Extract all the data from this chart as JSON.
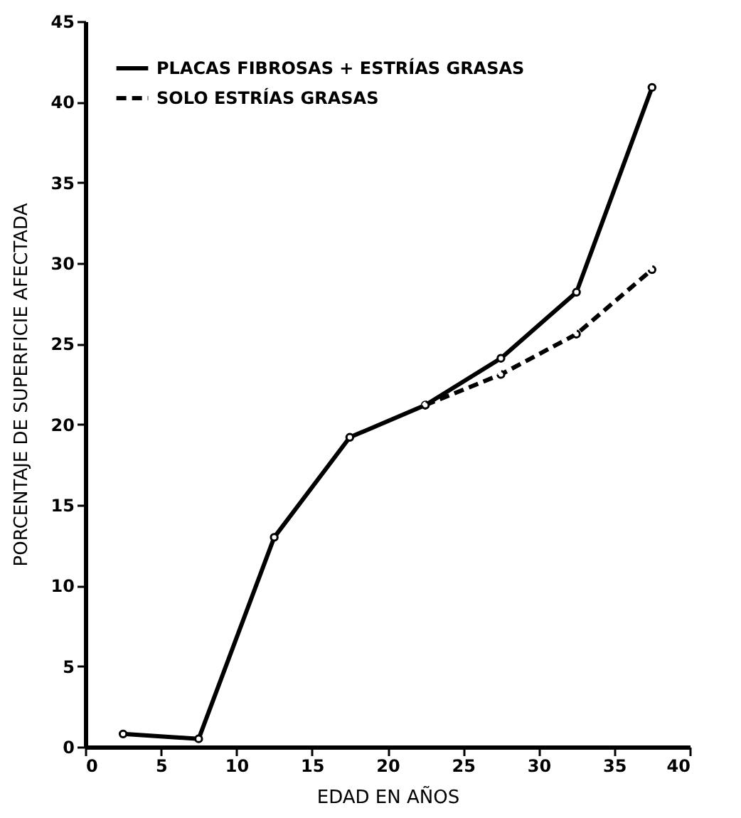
{
  "chart_data": {
    "type": "line",
    "xlabel": "EDAD EN AÑOS",
    "ylabel": "PORCENTAJE DE SUPERFICIE AFECTADA",
    "x": [
      2.5,
      7.5,
      12.5,
      17.5,
      22.5,
      27.5,
      32.5,
      37.5
    ],
    "series": [
      {
        "name": "PLACAS FIBROSAS + ESTRÍAS GRASAS",
        "color": "#000000",
        "line_style": "solid",
        "values": [
          0.8,
          0.5,
          13,
          19.2,
          21.2,
          24.1,
          28.2,
          40.9
        ]
      },
      {
        "name": "SOLO ESTRÍAS GRASAS",
        "color": "#000000",
        "line_style": "dashed",
        "x": [
          22.5,
          27.5,
          32.5,
          37.5
        ],
        "values": [
          21.2,
          23.1,
          25.6,
          29.6
        ]
      }
    ],
    "xlim": [
      0,
      40
    ],
    "xticks": [
      0,
      5,
      10,
      15,
      20,
      25,
      30,
      35,
      40
    ],
    "ylim": [
      0,
      45
    ],
    "yticks": [
      0,
      5,
      10,
      15,
      20,
      25,
      30,
      35,
      40,
      45
    ],
    "grid": false,
    "legend": "top left",
    "marker": "circle"
  }
}
